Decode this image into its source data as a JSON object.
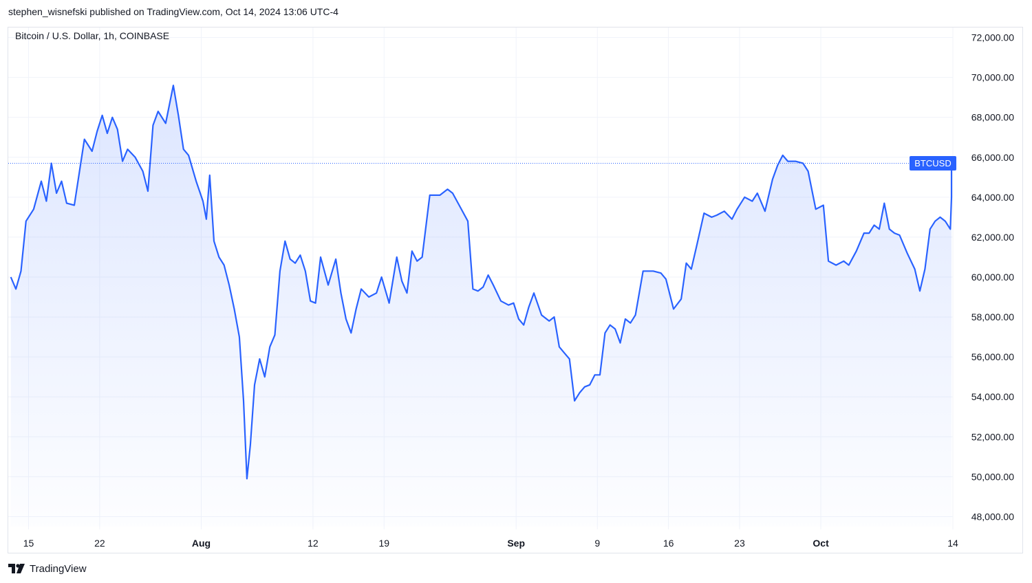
{
  "header": {
    "publisher_line": "stephen_wisnefski published on TradingView.com, Oct 14, 2024 13:06 UTC-4"
  },
  "symbol": {
    "title": "Bitcoin / U.S. Dollar, 1h, COINBASE",
    "ticker_badge": "BTCUSD"
  },
  "footer": {
    "brand": "TradingView",
    "logo_icon": "tradingview-logo-icon"
  },
  "colors": {
    "line": "#2962ff",
    "badge": "#2962ff",
    "grid": "#f0f3fa"
  },
  "chart_data": {
    "type": "area",
    "title": "Bitcoin / U.S. Dollar, 1h, COINBASE",
    "xlabel": "",
    "ylabel": "",
    "x_ticks": [
      "15",
      "22",
      "Aug",
      "12",
      "19",
      "Sep",
      "9",
      "16",
      "23",
      "Oct",
      "14"
    ],
    "x_ticks_bold": [
      "Aug",
      "Sep",
      "Oct"
    ],
    "y_ticks": [
      "72,000.00",
      "70,000.00",
      "68,000.00",
      "66,000.00",
      "64,000.00",
      "62,000.00",
      "60,000.00",
      "58,000.00",
      "56,000.00",
      "54,000.00",
      "52,000.00",
      "50,000.00",
      "48,000.00"
    ],
    "ylim": [
      47500,
      72500
    ],
    "xlim": [
      "2024-07-13",
      "2024-10-14"
    ],
    "last_price": 65700,
    "grid": true,
    "series": [
      {
        "values": [
          [
            "2024-07-13",
            60000
          ],
          [
            "2024-07-13",
            59400
          ],
          [
            "2024-07-14",
            60300
          ],
          [
            "2024-07-14",
            62800
          ],
          [
            "2024-07-15",
            63400
          ],
          [
            "2024-07-16",
            64800
          ],
          [
            "2024-07-16",
            63800
          ],
          [
            "2024-07-17",
            65700
          ],
          [
            "2024-07-17",
            64200
          ],
          [
            "2024-07-18",
            64800
          ],
          [
            "2024-07-18",
            63700
          ],
          [
            "2024-07-19",
            63600
          ],
          [
            "2024-07-20",
            66900
          ],
          [
            "2024-07-21",
            66300
          ],
          [
            "2024-07-21",
            67300
          ],
          [
            "2024-07-22",
            68100
          ],
          [
            "2024-07-22",
            67200
          ],
          [
            "2024-07-23",
            68000
          ],
          [
            "2024-07-23",
            67400
          ],
          [
            "2024-07-24",
            65800
          ],
          [
            "2024-07-24",
            66400
          ],
          [
            "2024-07-25",
            66000
          ],
          [
            "2024-07-26",
            65300
          ],
          [
            "2024-07-26",
            64300
          ],
          [
            "2024-07-27",
            67600
          ],
          [
            "2024-07-27",
            68300
          ],
          [
            "2024-07-28",
            67700
          ],
          [
            "2024-07-29",
            69600
          ],
          [
            "2024-07-29",
            68100
          ],
          [
            "2024-07-30",
            66400
          ],
          [
            "2024-07-30",
            66100
          ],
          [
            "2024-07-31",
            64800
          ],
          [
            "2024-08-01",
            63800
          ],
          [
            "2024-08-01",
            62900
          ],
          [
            "2024-08-01",
            65100
          ],
          [
            "2024-08-02",
            61800
          ],
          [
            "2024-08-02",
            61000
          ],
          [
            "2024-08-03",
            60600
          ],
          [
            "2024-08-03",
            59600
          ],
          [
            "2024-08-04",
            58400
          ],
          [
            "2024-08-04",
            57000
          ],
          [
            "2024-08-05",
            53800
          ],
          [
            "2024-08-05",
            49900
          ],
          [
            "2024-08-05",
            51600
          ],
          [
            "2024-08-06",
            54600
          ],
          [
            "2024-08-06",
            55900
          ],
          [
            "2024-08-07",
            55000
          ],
          [
            "2024-08-07",
            56500
          ],
          [
            "2024-08-08",
            57100
          ],
          [
            "2024-08-08",
            60300
          ],
          [
            "2024-08-09",
            61800
          ],
          [
            "2024-08-09",
            60900
          ],
          [
            "2024-08-10",
            60700
          ],
          [
            "2024-08-10",
            61100
          ],
          [
            "2024-08-11",
            60300
          ],
          [
            "2024-08-11",
            58800
          ],
          [
            "2024-08-12",
            58700
          ],
          [
            "2024-08-12",
            61000
          ],
          [
            "2024-08-13",
            59600
          ],
          [
            "2024-08-14",
            60900
          ],
          [
            "2024-08-14",
            59200
          ],
          [
            "2024-08-15",
            57900
          ],
          [
            "2024-08-15",
            57200
          ],
          [
            "2024-08-16",
            58400
          ],
          [
            "2024-08-16",
            59400
          ],
          [
            "2024-08-17",
            59000
          ],
          [
            "2024-08-18",
            59200
          ],
          [
            "2024-08-18",
            60000
          ],
          [
            "2024-08-19",
            58700
          ],
          [
            "2024-08-20",
            61000
          ],
          [
            "2024-08-20",
            59800
          ],
          [
            "2024-08-21",
            59200
          ],
          [
            "2024-08-21",
            61300
          ],
          [
            "2024-08-22",
            60800
          ],
          [
            "2024-08-22",
            61000
          ],
          [
            "2024-08-23",
            64100
          ],
          [
            "2024-08-24",
            64100
          ],
          [
            "2024-08-25",
            64400
          ],
          [
            "2024-08-25",
            64200
          ],
          [
            "2024-08-26",
            63500
          ],
          [
            "2024-08-27",
            62800
          ],
          [
            "2024-08-27",
            59400
          ],
          [
            "2024-08-28",
            59300
          ],
          [
            "2024-08-28",
            59500
          ],
          [
            "2024-08-29",
            60100
          ],
          [
            "2024-08-29",
            59600
          ],
          [
            "2024-08-30",
            58800
          ],
          [
            "2024-08-31",
            58600
          ],
          [
            "2024-08-31",
            58700
          ],
          [
            "2024-09-01",
            57900
          ],
          [
            "2024-09-01",
            57600
          ],
          [
            "2024-09-02",
            58500
          ],
          [
            "2024-09-02",
            59200
          ],
          [
            "2024-09-03",
            58100
          ],
          [
            "2024-09-04",
            57800
          ],
          [
            "2024-09-04",
            58000
          ],
          [
            "2024-09-05",
            56500
          ],
          [
            "2024-09-05",
            56200
          ],
          [
            "2024-09-06",
            55900
          ],
          [
            "2024-09-06",
            53800
          ],
          [
            "2024-09-07",
            54200
          ],
          [
            "2024-09-07",
            54500
          ],
          [
            "2024-09-08",
            54600
          ],
          [
            "2024-09-08",
            55100
          ],
          [
            "2024-09-09",
            55100
          ],
          [
            "2024-09-09",
            57200
          ],
          [
            "2024-09-10",
            57600
          ],
          [
            "2024-09-10",
            57400
          ],
          [
            "2024-09-11",
            56700
          ],
          [
            "2024-09-11",
            57900
          ],
          [
            "2024-09-12",
            57700
          ],
          [
            "2024-09-12",
            58100
          ],
          [
            "2024-09-13",
            60300
          ],
          [
            "2024-09-14",
            60300
          ],
          [
            "2024-09-15",
            60200
          ],
          [
            "2024-09-15",
            59900
          ],
          [
            "2024-09-16",
            58400
          ],
          [
            "2024-09-17",
            58900
          ],
          [
            "2024-09-17",
            60700
          ],
          [
            "2024-09-18",
            60400
          ],
          [
            "2024-09-18",
            61500
          ],
          [
            "2024-09-19",
            63200
          ],
          [
            "2024-09-20",
            63000
          ],
          [
            "2024-09-20",
            63100
          ],
          [
            "2024-09-21",
            63300
          ],
          [
            "2024-09-22",
            62900
          ],
          [
            "2024-09-22",
            63400
          ],
          [
            "2024-09-23",
            64000
          ],
          [
            "2024-09-24",
            63800
          ],
          [
            "2024-09-24",
            64200
          ],
          [
            "2024-09-25",
            63300
          ],
          [
            "2024-09-26",
            64900
          ],
          [
            "2024-09-26",
            65600
          ],
          [
            "2024-09-27",
            66100
          ],
          [
            "2024-09-27",
            65800
          ],
          [
            "2024-09-28",
            65800
          ],
          [
            "2024-09-29",
            65700
          ],
          [
            "2024-09-29",
            65300
          ],
          [
            "2024-09-30",
            63400
          ],
          [
            "2024-10-01",
            63600
          ],
          [
            "2024-10-01",
            60800
          ],
          [
            "2024-10-02",
            60600
          ],
          [
            "2024-10-03",
            60800
          ],
          [
            "2024-10-03",
            60600
          ],
          [
            "2024-10-04",
            61300
          ],
          [
            "2024-10-05",
            62200
          ],
          [
            "2024-10-05",
            62200
          ],
          [
            "2024-10-06",
            62600
          ],
          [
            "2024-10-06",
            62400
          ],
          [
            "2024-10-07",
            63700
          ],
          [
            "2024-10-07",
            62400
          ],
          [
            "2024-10-08",
            62200
          ],
          [
            "2024-10-08",
            62100
          ],
          [
            "2024-10-09",
            61200
          ],
          [
            "2024-10-10",
            60400
          ],
          [
            "2024-10-10",
            59300
          ],
          [
            "2024-10-11",
            60400
          ],
          [
            "2024-10-11",
            62400
          ],
          [
            "2024-10-12",
            62800
          ],
          [
            "2024-10-12",
            63000
          ],
          [
            "2024-10-13",
            62800
          ],
          [
            "2024-10-13",
            62400
          ],
          [
            "2024-10-14",
            64000
          ],
          [
            "2024-10-14",
            65700
          ]
        ]
      }
    ]
  }
}
